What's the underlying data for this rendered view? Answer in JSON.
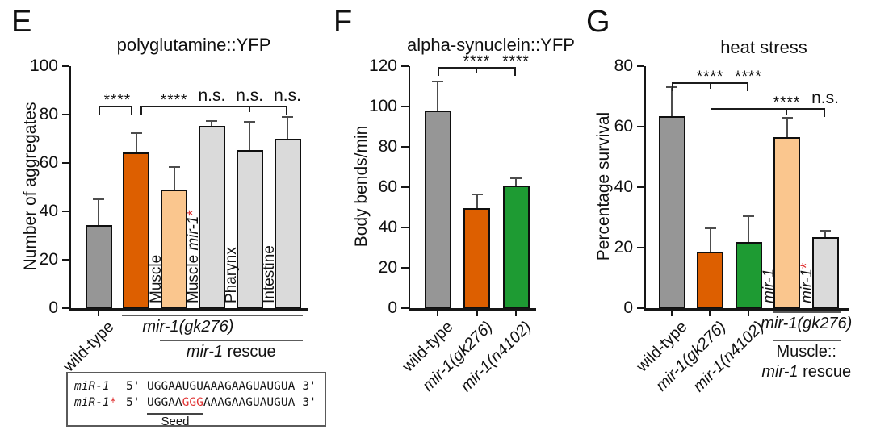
{
  "colors": {
    "gray": "#969696",
    "orange": "#DD5F00",
    "peach": "#FAC68E",
    "light_gray": "#DADADA",
    "green": "#1E9B33",
    "red_accent": "#E03131",
    "axis": "#161616"
  },
  "chart_data": [
    {
      "type": "bar",
      "panel": "E",
      "title": "polyglutamine::YFP",
      "ylabel": "Number of aggregates",
      "ylim": [
        0,
        100
      ],
      "yticks": [
        0,
        20,
        40,
        60,
        80,
        100
      ],
      "grid": false,
      "categories": [
        "wild-type",
        "mir-1(gk276)",
        "Muscle",
        "Muscle mir-1*",
        "Pharynx",
        "Intestine"
      ],
      "values": [
        34.5,
        64.5,
        49,
        75.5,
        65.5,
        70
      ],
      "errors": [
        10.5,
        8,
        9.5,
        2,
        11.5,
        9
      ],
      "bar_colors": [
        "#969696",
        "#DD5F00",
        "#FAC68E",
        "#DADADA",
        "#DADADA",
        "#DADADA"
      ],
      "x_labels": [
        {
          "text": "wild-type",
          "italic": false
        },
        null,
        null,
        null,
        null,
        null
      ],
      "inbar_labels": [
        null,
        null,
        [
          {
            "t": "Muscle"
          }
        ],
        [
          {
            "t": "Muscle "
          },
          {
            "t": "mir-1",
            "i": 1
          },
          {
            "t": "*",
            "r": 1
          }
        ],
        [
          {
            "t": "Pharynx"
          }
        ],
        [
          {
            "t": "Intestine"
          }
        ]
      ],
      "significance": [
        {
          "from": 0,
          "to": 1,
          "x2off": -5,
          "ticks": [],
          "labels": [
            {
              "at": 0.5,
              "text": "****"
            }
          ]
        },
        {
          "from": 1,
          "to": 5,
          "x1off": 5,
          "ticks": [
            2,
            3,
            4
          ],
          "labels": [
            {
              "at": 2,
              "text": "****"
            },
            {
              "at": 3,
              "text": "n.s."
            },
            {
              "at": 4,
              "text": "n.s."
            },
            {
              "at": 5,
              "text": "n.s."
            }
          ]
        }
      ],
      "group_lines": [
        {
          "from": 1,
          "to": 5,
          "row": 0,
          "dx": -30,
          "lines": [
            [
              {
                "t": "mir-1",
                "i": 1
              },
              {
                "t": "(gk276)",
                "i": 1
              }
            ]
          ]
        },
        {
          "from": 2,
          "to": 5,
          "row": 1,
          "dx": 0,
          "lines": [
            [
              {
                "t": "mir-1",
                "i": 1
              },
              {
                "t": " rescue"
              }
            ]
          ]
        }
      ]
    },
    {
      "type": "bar",
      "panel": "F",
      "title": "alpha-synuclein::YFP",
      "ylabel": "Body bends/min",
      "ylim": [
        0,
        120
      ],
      "yticks": [
        0,
        20,
        40,
        60,
        80,
        100,
        120
      ],
      "grid": false,
      "categories": [
        "wild-type",
        "mir-1(gk276)",
        "mir-1(n4102)"
      ],
      "values": [
        98,
        49.5,
        61
      ],
      "errors": [
        14.5,
        7,
        3.5
      ],
      "bar_colors": [
        "#969696",
        "#DD5F00",
        "#1E9B33"
      ],
      "x_labels": [
        {
          "text": "wild-type",
          "italic": false
        },
        {
          "text": "mir-1(gk276)",
          "italic": true
        },
        {
          "text": "mir-1(n4102)",
          "italic": true
        }
      ],
      "inbar_labels": [
        null,
        null,
        null
      ],
      "significance": [
        {
          "from": 0,
          "to": 2,
          "ticks": [
            1
          ],
          "labels": [
            {
              "at": 1,
              "text": "****"
            },
            {
              "at": 2,
              "text": "****"
            }
          ]
        }
      ],
      "group_lines": []
    },
    {
      "type": "bar",
      "panel": "G",
      "title": "heat stress",
      "ylabel": "Percentage survival",
      "ylim": [
        0,
        80
      ],
      "yticks": [
        0,
        20,
        40,
        60,
        80
      ],
      "grid": false,
      "categories": [
        "wild-type",
        "mir-1(gk276)",
        "mir-1(n4102)",
        "mir-1",
        "mir-1*"
      ],
      "values": [
        63.5,
        18.7,
        21.9,
        56.5,
        23.5
      ],
      "errors": [
        9.5,
        7.7,
        8.5,
        6.5,
        2
      ],
      "bar_colors": [
        "#969696",
        "#DD5F00",
        "#1E9B33",
        "#FAC68E",
        "#DADADA"
      ],
      "x_labels": [
        {
          "text": "wild-type",
          "italic": false
        },
        {
          "text": "mir-1(gk276)",
          "italic": true
        },
        {
          "text": "mir-1(n4102)",
          "italic": true
        },
        null,
        null
      ],
      "inbar_labels": [
        null,
        null,
        null,
        [
          {
            "t": "mir-1",
            "i": 1
          }
        ],
        [
          {
            "t": "mir-1",
            "i": 1
          },
          {
            "t": "*",
            "r": 1
          }
        ]
      ],
      "significance": [
        {
          "from": 0,
          "to": 2,
          "ticks": [
            1
          ],
          "labels": [
            {
              "at": 1,
              "text": "****"
            },
            {
              "at": 2,
              "text": "****"
            }
          ]
        },
        {
          "from": 1,
          "to": 4,
          "ticks": [
            3
          ],
          "labels": [
            {
              "at": 3,
              "text": "****"
            },
            {
              "at": 4,
              "text": "n.s."
            }
          ],
          "row": 1
        }
      ],
      "group_lines": [
        {
          "from": 3,
          "to": 4,
          "row": 0,
          "dx": 0,
          "lines": [
            [
              {
                "t": "mir-1",
                "i": 1
              },
              {
                "t": "(gk276)",
                "i": 1
              }
            ]
          ]
        },
        {
          "from": 3,
          "to": 4,
          "row": 1,
          "dx": 0,
          "lines": [
            [
              {
                "t": "Muscle::"
              }
            ],
            [
              {
                "t": "mir-1",
                "i": 1
              },
              {
                "t": " rescue"
              }
            ]
          ]
        }
      ]
    }
  ],
  "sequence_box": {
    "rows": [
      {
        "name": "miR-1",
        "star": "",
        "five": "5'",
        "seq_pre": "UGGAAUGUAAAGAAGUAUGUA",
        "seq_red": "",
        "seq_post": "",
        "three": "3'"
      },
      {
        "name": "miR-1",
        "star": "*",
        "five": "5'",
        "seq_pre": "UGGAA",
        "seq_red": "GGG",
        "seq_post": "AAAGAAGUAUGUA",
        "three": "3'"
      }
    ],
    "seed_label": "Seed"
  }
}
